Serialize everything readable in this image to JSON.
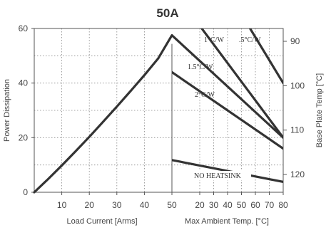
{
  "chart_data": {
    "type": "line",
    "title": "50A",
    "y_left": {
      "label": "Power Dissipation",
      "range": [
        0,
        60
      ],
      "ticks": [
        0,
        20,
        40,
        60
      ]
    },
    "y_right": {
      "label": "Base Plate Temp [°C]",
      "range": [
        85,
        125
      ],
      "ticks": [
        90,
        100,
        110,
        120
      ],
      "direction": "downward"
    },
    "x_left": {
      "label": "Load Current  [Arms]",
      "range": [
        0,
        50
      ],
      "ticks": [
        10,
        20,
        30,
        40,
        50
      ]
    },
    "x_right": {
      "label": "Max Ambient Temp. [°C]",
      "range": [
        0,
        80
      ],
      "ticks": [
        20,
        30,
        40,
        50,
        60,
        70,
        80
      ],
      "tick_offset_start": 10
    },
    "grid": true,
    "load_curve": {
      "x": [
        0,
        5,
        10,
        15,
        20,
        25,
        30,
        35,
        40,
        45,
        50
      ],
      "y": [
        0,
        4.8,
        9.8,
        15,
        20.3,
        25.8,
        31.4,
        37.1,
        42.9,
        49,
        57.5
      ]
    },
    "thermal_lines": [
      {
        "label": ".5°C/W",
        "x": [
          55,
          80
        ],
        "y": [
          61,
          40
        ]
      },
      {
        "label": "1°C/W",
        "x": [
          20,
          80
        ],
        "y": [
          61,
          20
        ]
      },
      {
        "label": "1.5°C/W",
        "x": [
          0,
          80
        ],
        "y": [
          57.5,
          20
        ]
      },
      {
        "label": "2°C/W",
        "x": [
          0,
          80
        ],
        "y": [
          44,
          16
        ]
      },
      {
        "label": "NO HEATSINK",
        "x": [
          0,
          80
        ],
        "y": [
          11.8,
          3.8
        ]
      }
    ],
    "line_color": "#333333"
  }
}
